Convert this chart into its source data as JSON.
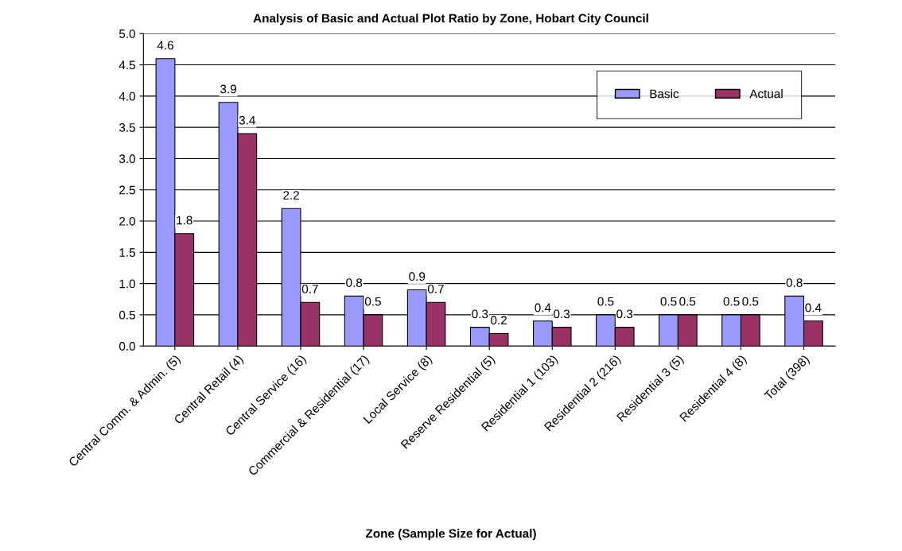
{
  "chart_data": {
    "type": "bar",
    "title": "Analysis of Basic and Actual Plot Ratio by Zone, Hobart City Council",
    "xlabel": "Zone (Sample Size for Actual)",
    "categories": [
      "Central Comm. & Admin. (5)",
      "Central Retail (4)",
      "Central Service (16)",
      "Commercial & Residential (17)",
      "Local Service (8)",
      "Reserve Residential (5)",
      "Residential 1 (103)",
      "Residential 2 (216)",
      "Residential 3 (5)",
      "Residential 4 (8)",
      "Total (398)"
    ],
    "series": [
      {
        "name": "Basic",
        "color": "#9999ff",
        "values": [
          4.6,
          3.9,
          2.2,
          0.8,
          0.9,
          0.3,
          0.4,
          0.5,
          0.5,
          0.5,
          0.8
        ]
      },
      {
        "name": "Actual",
        "color": "#993366",
        "values": [
          1.8,
          3.4,
          0.7,
          0.5,
          0.7,
          0.2,
          0.3,
          0.3,
          0.5,
          0.5,
          0.4
        ]
      }
    ],
    "ylim": [
      0,
      5
    ],
    "yticks": [
      {
        "value": 0,
        "label": "0.0"
      },
      {
        "value": 0.5,
        "label": "0.5"
      },
      {
        "value": 1,
        "label": "1.0"
      },
      {
        "value": 1.5,
        "label": "1.5"
      },
      {
        "value": 2,
        "label": "2.0"
      },
      {
        "value": 2.5,
        "label": "2.5"
      },
      {
        "value": 3,
        "label": "3.0"
      },
      {
        "value": 3.5,
        "label": "3.5"
      },
      {
        "value": 4,
        "label": "4.0"
      },
      {
        "value": 4.5,
        "label": "4.5"
      },
      {
        "value": 5,
        "label": "5.0"
      }
    ],
    "grid": "y",
    "legend": "top right",
    "data_labels": true
  }
}
